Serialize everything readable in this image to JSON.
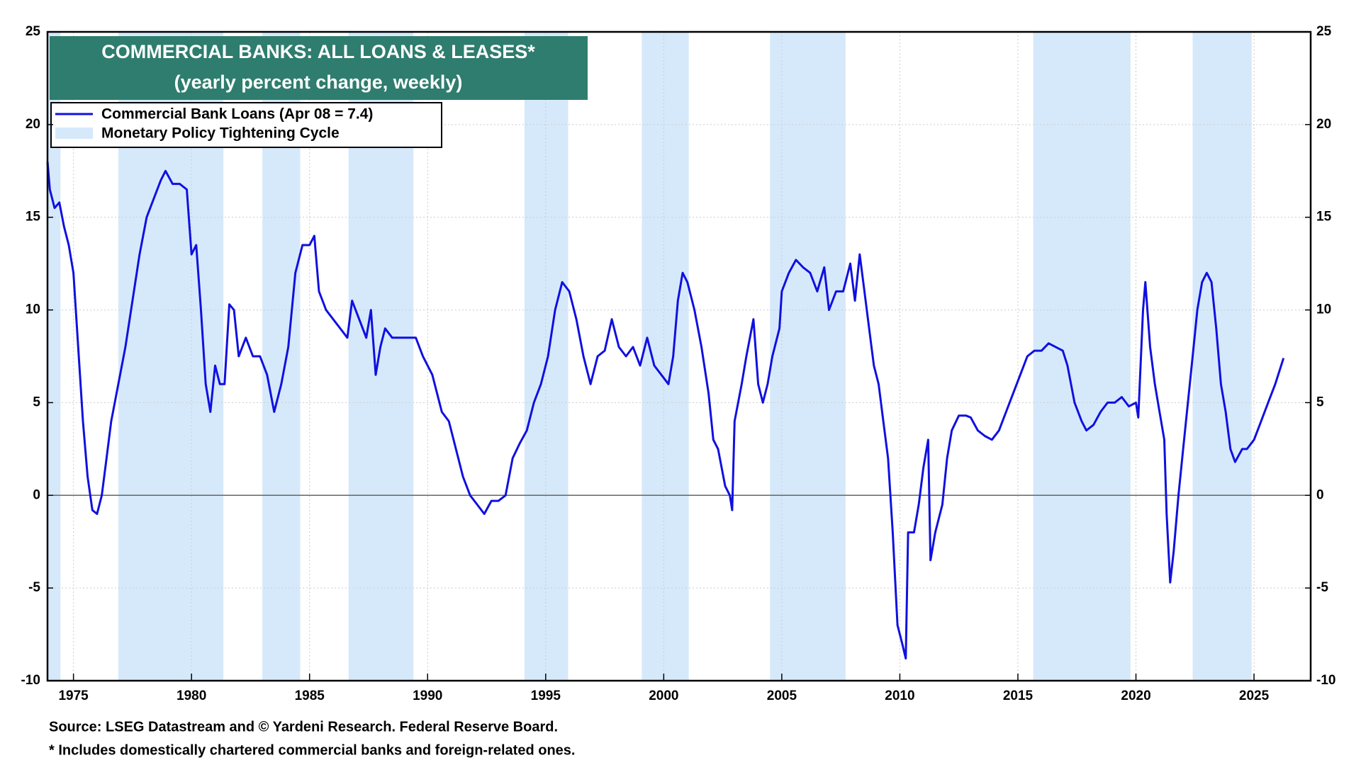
{
  "chart_data": {
    "type": "line",
    "title": "COMMERCIAL BANKS: ALL LOANS & LEASES*",
    "subtitle": "(yearly percent change, weekly)",
    "source": "Source: LSEG Datastream and © Yardeni Research. Federal Reserve Board.",
    "note": "* Includes domestically chartered commercial banks and foreign-related ones.",
    "xlim": [
      1973.9,
      2027.4
    ],
    "xticks": [
      1975,
      1980,
      1985,
      1990,
      1995,
      2000,
      2005,
      2010,
      2015,
      2020,
      2025
    ],
    "ylim": [
      -10,
      25
    ],
    "yticks": [
      -10,
      -5,
      0,
      5,
      10,
      15,
      20,
      25
    ],
    "y2lim": [
      -10,
      25
    ],
    "y2ticks": [
      -10,
      -5,
      0,
      5,
      10,
      15,
      20,
      25
    ],
    "grid": true,
    "bands": {
      "name": "Monetary Policy Tightening Cycle",
      "color": "#d6e9fb",
      "ranges": [
        [
          1973.9,
          1974.45
        ],
        [
          1976.9,
          1981.35
        ],
        [
          1983.0,
          1984.6
        ],
        [
          1986.65,
          1989.4
        ],
        [
          1994.1,
          1995.95
        ],
        [
          1999.07,
          2001.06
        ],
        [
          2004.5,
          2007.7
        ],
        [
          2015.65,
          2019.77
        ],
        [
          2022.4,
          2024.9
        ]
      ]
    },
    "series": [
      {
        "name": "Commercial Bank Loans (Apr 08 = 7.4)",
        "color": "#1010e0",
        "x": [
          1973.9,
          1974.0,
          1974.2,
          1974.4,
          1974.6,
          1974.8,
          1975.0,
          1975.2,
          1975.4,
          1975.6,
          1975.8,
          1976.0,
          1976.2,
          1976.4,
          1976.6,
          1976.9,
          1977.2,
          1977.5,
          1977.8,
          1978.1,
          1978.4,
          1978.7,
          1978.9,
          1979.2,
          1979.5,
          1979.8,
          1980.0,
          1980.2,
          1980.4,
          1980.6,
          1980.8,
          1981.0,
          1981.2,
          1981.4,
          1981.6,
          1981.8,
          1982.0,
          1982.3,
          1982.6,
          1982.9,
          1983.2,
          1983.5,
          1983.8,
          1984.1,
          1984.4,
          1984.7,
          1985.0,
          1985.2,
          1985.4,
          1985.7,
          1986.0,
          1986.3,
          1986.6,
          1986.8,
          1987.1,
          1987.4,
          1987.6,
          1987.8,
          1988.0,
          1988.2,
          1988.5,
          1988.8,
          1989.1,
          1989.5,
          1989.8,
          1990.2,
          1990.6,
          1990.9,
          1991.2,
          1991.5,
          1991.8,
          1992.1,
          1992.4,
          1992.7,
          1993.0,
          1993.3,
          1993.6,
          1993.9,
          1994.2,
          1994.5,
          1994.8,
          1995.1,
          1995.4,
          1995.7,
          1996.0,
          1996.3,
          1996.6,
          1996.9,
          1997.2,
          1997.5,
          1997.8,
          1998.1,
          1998.4,
          1998.7,
          1999.0,
          1999.3,
          1999.6,
          1999.9,
          2000.2,
          2000.4,
          2000.6,
          2000.8,
          2001.0,
          2001.3,
          2001.6,
          2001.9,
          2002.1,
          2002.3,
          2002.6,
          2002.8,
          2002.9,
          2003.0,
          2003.3,
          2003.5,
          2003.8,
          2004.0,
          2004.2,
          2004.4,
          2004.6,
          2004.9,
          2005.0,
          2005.3,
          2005.6,
          2005.9,
          2006.2,
          2006.5,
          2006.8,
          2007.0,
          2007.3,
          2007.6,
          2007.9,
          2008.1,
          2008.3,
          2008.5,
          2008.7,
          2008.9,
          2009.1,
          2009.3,
          2009.5,
          2009.7,
          2009.9,
          2010.1,
          2010.25,
          2010.35,
          2010.6,
          2010.8,
          2011.0,
          2011.2,
          2011.3,
          2011.5,
          2011.8,
          2012.0,
          2012.2,
          2012.5,
          2012.8,
          2013.0,
          2013.3,
          2013.6,
          2013.9,
          2014.2,
          2014.5,
          2014.8,
          2015.1,
          2015.4,
          2015.7,
          2016.0,
          2016.3,
          2016.6,
          2016.9,
          2017.1,
          2017.4,
          2017.7,
          2017.9,
          2018.2,
          2018.5,
          2018.8,
          2019.1,
          2019.4,
          2019.7,
          2020.0,
          2020.1,
          2020.3,
          2020.4,
          2020.6,
          2020.8,
          2021.0,
          2021.2,
          2021.3,
          2021.45,
          2021.6,
          2021.8,
          2022.0,
          2022.2,
          2022.4,
          2022.6,
          2022.8,
          2023.0,
          2023.2,
          2023.4,
          2023.6,
          2023.8,
          2024.0,
          2024.2,
          2024.5,
          2024.7,
          2025.0,
          2025.3,
          2025.6,
          2025.9,
          2026.1,
          2026.25
        ],
        "values": [
          18,
          16.5,
          15.5,
          15.8,
          14.5,
          13.5,
          12,
          8,
          4,
          1,
          -0.8,
          -1,
          0,
          2,
          4,
          6,
          8,
          10.5,
          13,
          15,
          16,
          17,
          17.5,
          16.8,
          16.8,
          16.5,
          13,
          13.5,
          10,
          6,
          4.5,
          7,
          6,
          6,
          10.3,
          10,
          7.5,
          8.5,
          7.5,
          7.5,
          6.5,
          4.5,
          6,
          8,
          12,
          13.5,
          13.5,
          14,
          11,
          10,
          9.5,
          9,
          8.5,
          10.5,
          9.5,
          8.5,
          10,
          6.5,
          8,
          9,
          8.5,
          8.5,
          8.5,
          8.5,
          7.5,
          6.5,
          4.5,
          4,
          2.5,
          1,
          0,
          -0.5,
          -1,
          -0.3,
          -0.3,
          0,
          2,
          2.8,
          3.5,
          5,
          6,
          7.5,
          10,
          11.5,
          11,
          9.5,
          7.5,
          6,
          7.5,
          7.8,
          9.5,
          8,
          7.5,
          8,
          7,
          8.5,
          7,
          6.5,
          6,
          7.5,
          10.5,
          12,
          11.5,
          10,
          8,
          5.5,
          3,
          2.5,
          0.5,
          0,
          -0.8,
          4,
          6,
          7.5,
          9.5,
          6,
          5,
          6,
          7.5,
          9,
          11,
          12,
          12.7,
          12.3,
          12,
          11,
          12.3,
          10,
          11,
          11,
          12.5,
          10.5,
          13,
          11,
          9,
          7,
          6,
          4,
          2,
          -2,
          -7,
          -8,
          -8.8,
          -2,
          -2,
          -0.5,
          1.5,
          3,
          -3.5,
          -2,
          -0.5,
          2,
          3.5,
          4.3,
          4.3,
          4.2,
          3.5,
          3.2,
          3,
          3.5,
          4.5,
          5.5,
          6.5,
          7.5,
          7.8,
          7.8,
          8.2,
          8,
          7.8,
          7,
          5,
          4,
          3.5,
          3.8,
          4.5,
          5,
          5,
          5.3,
          4.8,
          5,
          4.2,
          10,
          11.5,
          8,
          6,
          4.5,
          3,
          -1,
          -4.7,
          -3,
          0,
          2.5,
          5,
          7.5,
          10,
          11.5,
          12,
          11.5,
          9,
          6,
          4.5,
          2.5,
          1.8,
          2.5,
          2.5,
          3,
          4,
          5,
          6,
          6.8,
          7.4
        ]
      }
    ]
  }
}
